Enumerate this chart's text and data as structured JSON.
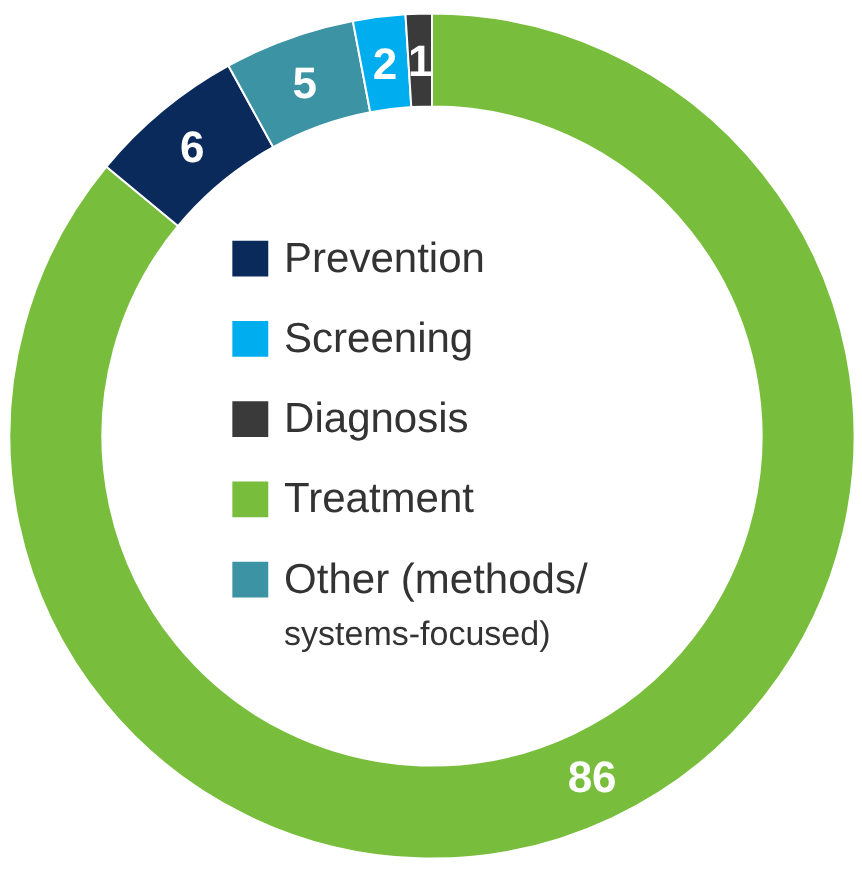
{
  "chart_data": {
    "type": "donut",
    "categories": [
      "Treatment",
      "Prevention",
      "Other (methods/ systems-focused)",
      "Screening",
      "Diagnosis"
    ],
    "values": [
      86,
      6,
      5,
      2,
      1
    ],
    "colors": [
      "#78be3c",
      "#0a2a5c",
      "#3c93a3",
      "#00aeef",
      "#3a3a3a"
    ],
    "data_labels": true,
    "legend": "center"
  }
}
